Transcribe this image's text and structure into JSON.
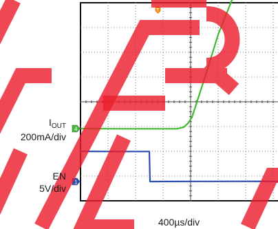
{
  "chart_data": {
    "type": "line",
    "time_scale": "400µs/div",
    "grid": {
      "h_divs": 8,
      "v_divs": 8,
      "x_range_us": [
        0,
        3200
      ]
    },
    "watermark": {
      "text": "PREVIEW"
    },
    "series": [
      {
        "name": "I",
        "name_subscript": "OUT",
        "scale": "200mA/div",
        "marker": "4",
        "color": "#3fb92f",
        "unit": "div",
        "x": [
          0,
          600,
          1400,
          1500,
          1560,
          1620,
          1800,
          2000,
          2200,
          2320,
          2400,
          2700,
          3000,
          3200
        ],
        "y": [
          0,
          0,
          0,
          0.06,
          0.2,
          0.45,
          2.0,
          3.8,
          5.2,
          5.62,
          5.65,
          5.65,
          5.64,
          5.64
        ]
      },
      {
        "name": "EN",
        "scale": "5V/div",
        "marker": "1",
        "color": "#2b4bb5",
        "unit": "div",
        "x": [
          0,
          500,
          1000,
          1010,
          1600,
          2400,
          3200
        ],
        "y": [
          1.22,
          1.22,
          1.22,
          0,
          0,
          0,
          0
        ]
      }
    ],
    "trigger_marker": {
      "label": "T",
      "x_us": 1125
    },
    "right_marker": {
      "x_us": 3200,
      "y_div": 5.1
    }
  }
}
